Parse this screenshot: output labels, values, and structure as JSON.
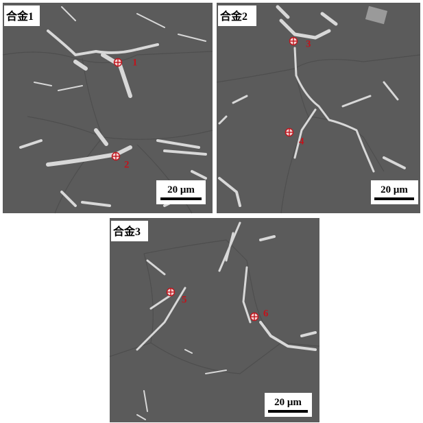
{
  "panels": [
    {
      "label": "合金1",
      "scale_bar": "20 μm",
      "points": [
        {
          "label": "1"
        },
        {
          "label": "2"
        }
      ]
    },
    {
      "label": "合金2",
      "scale_bar": "20 μm",
      "points": [
        {
          "label": "3"
        },
        {
          "label": "4"
        }
      ]
    },
    {
      "label": "合金3",
      "scale_bar": "20 μm",
      "points": [
        {
          "label": "5"
        },
        {
          "label": "6"
        }
      ]
    }
  ]
}
